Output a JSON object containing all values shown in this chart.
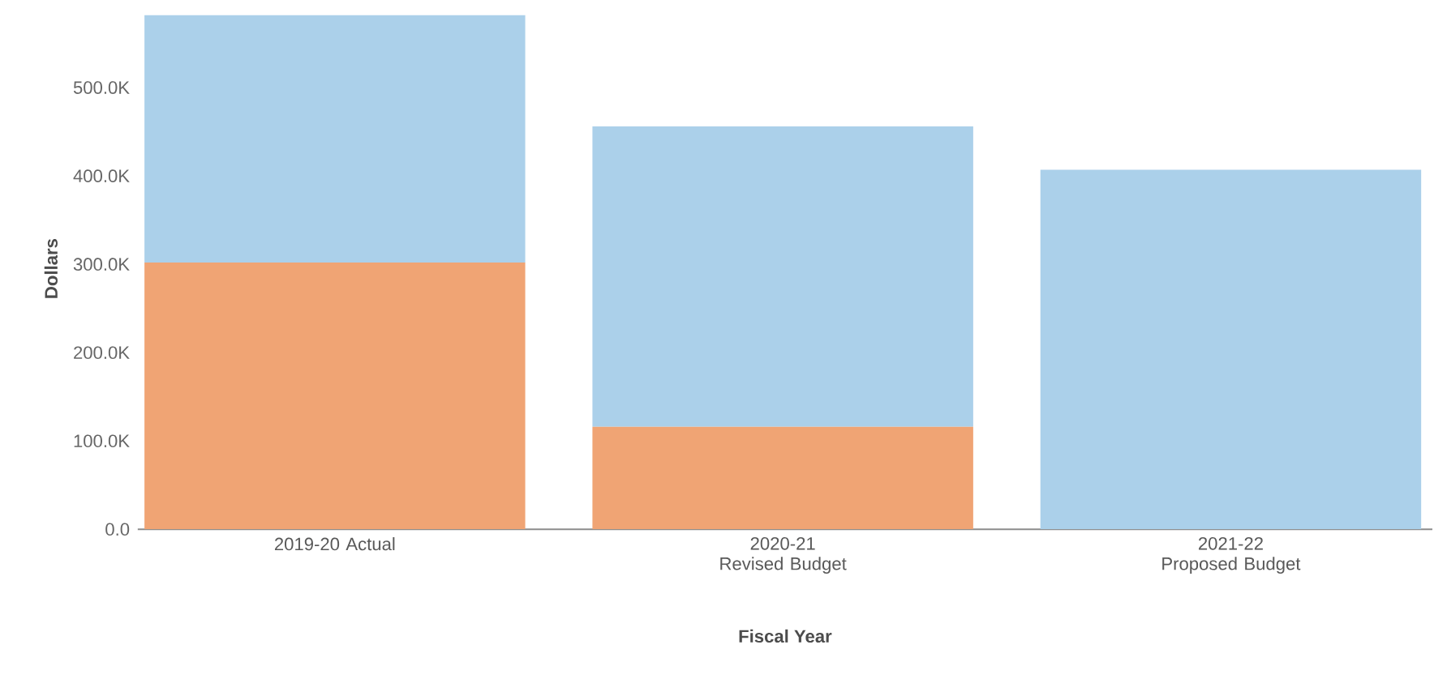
{
  "chart_data": {
    "type": "bar",
    "stacked": true,
    "xlabel": "Fiscal Year",
    "ylabel": "Dollars",
    "categories": [
      "2019-20 Actual",
      "2020-21 Revised Budget",
      "2021-22 Proposed Budget"
    ],
    "series": [
      {
        "color": "#f0a474",
        "values": [
          302000,
          116000,
          0
        ]
      },
      {
        "color": "#abd0ea",
        "values": [
          280000,
          340000,
          407000
        ]
      }
    ],
    "ylim": [
      0,
      590000
    ],
    "yticks": [
      {
        "value": 0,
        "label": "0.0"
      },
      {
        "value": 100000,
        "label": "100.0K"
      },
      {
        "value": 200000,
        "label": "200.0K"
      },
      {
        "value": 300000,
        "label": "300.0K"
      },
      {
        "value": 400000,
        "label": "400.0K"
      },
      {
        "value": 500000,
        "label": "500.0K"
      }
    ],
    "grid": false
  }
}
